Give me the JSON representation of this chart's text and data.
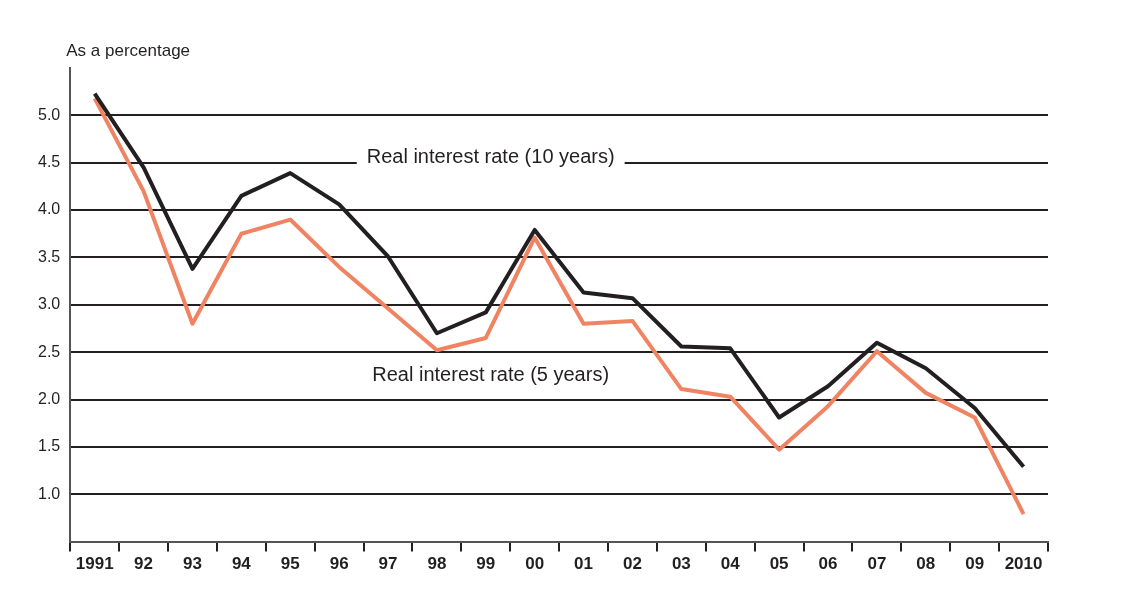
{
  "chart_data": {
    "type": "line",
    "ylabel": "As a percentage",
    "categories": [
      "1991",
      "92",
      "93",
      "94",
      "95",
      "96",
      "97",
      "98",
      "99",
      "00",
      "01",
      "02",
      "03",
      "04",
      "05",
      "06",
      "07",
      "08",
      "09",
      "2010"
    ],
    "series": [
      {
        "name": "Real interest rate (10 years)",
        "color": "#231f20",
        "values": [
          5.23,
          4.45,
          3.38,
          4.15,
          4.39,
          4.06,
          3.51,
          2.7,
          2.92,
          3.79,
          3.13,
          3.07,
          2.56,
          2.54,
          1.81,
          2.14,
          2.6,
          2.33,
          1.91,
          1.29
        ]
      },
      {
        "name": "Real interest rate (5 years)",
        "color": "#f08462",
        "values": [
          5.18,
          4.2,
          2.8,
          3.75,
          3.9,
          3.4,
          2.96,
          2.52,
          2.65,
          3.71,
          2.8,
          2.83,
          2.11,
          2.03,
          1.47,
          1.93,
          2.51,
          2.07,
          1.81,
          0.79
        ]
      }
    ],
    "ylim": [
      0.5,
      5.5
    ],
    "yticks": [
      {
        "value": 1,
        "label": "1.0"
      },
      {
        "value": 1.5,
        "label": "1.5"
      },
      {
        "value": 2,
        "label": "2.0"
      },
      {
        "value": 2.5,
        "label": "2.5"
      },
      {
        "value": 3,
        "label": "3.0"
      },
      {
        "value": 3.5,
        "label": "3.5"
      },
      {
        "value": 4,
        "label": "4.0"
      },
      {
        "value": 4.5,
        "label": "4.5"
      },
      {
        "value": 5,
        "label": "5.0"
      }
    ],
    "grid": "y",
    "legend": false,
    "marker": "none",
    "line_style": "solid"
  }
}
